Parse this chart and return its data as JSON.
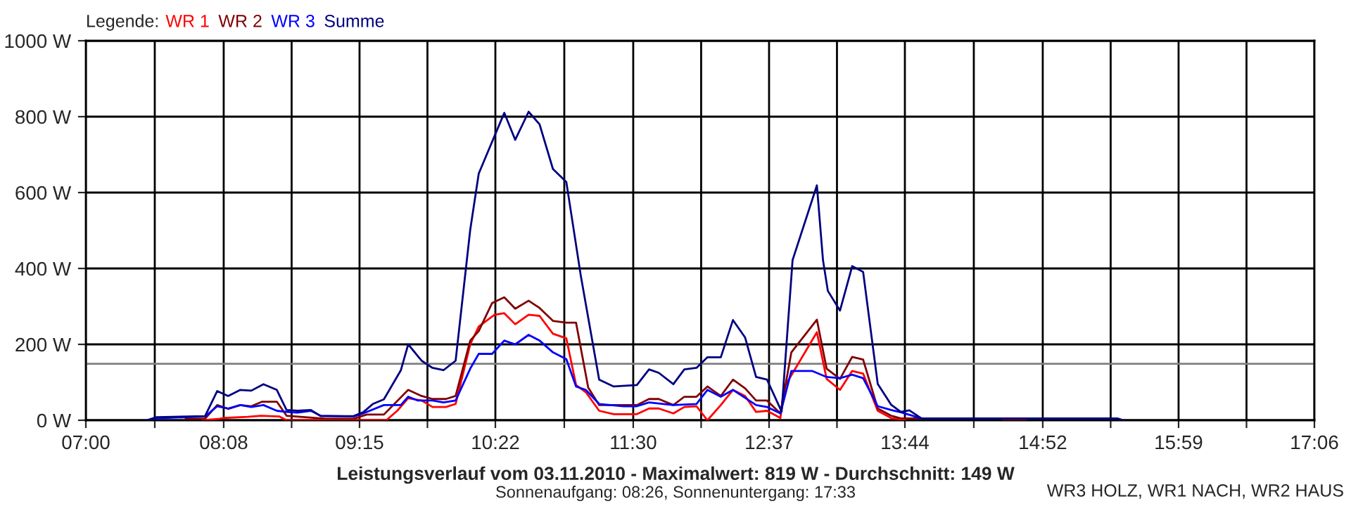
{
  "chart_data": {
    "type": "line",
    "title": "Leistungsverlauf vom 03.11.2010 - Maximalwert: 819 W - Durchschnitt: 149 W",
    "subtitle": "Sonnenaufgang: 08:26, Sonnenuntergang: 17:33",
    "legend_title": "Legende:",
    "annotations": [
      "WR3 HOLZ, WR1 NACH, WR2 HAUS"
    ],
    "series": [
      {
        "name": "WR 1",
        "color": "#ff0000",
        "x": [
          7.96,
          8.1,
          8.13,
          8.33,
          8.44,
          8.59,
          8.65,
          9.47,
          9.56,
          9.65,
          9.76,
          9.85,
          9.96,
          10.04,
          10.16,
          10.23,
          10.36,
          10.44,
          10.53,
          10.64,
          10.73,
          10.84,
          10.95,
          11.03,
          11.11,
          11.22,
          11.34,
          11.53,
          11.63,
          11.71,
          11.83,
          11.92,
          12.02,
          12.11,
          12.22,
          12.32,
          12.42,
          12.51,
          12.6,
          12.71,
          12.74,
          13.01,
          13.09,
          13.2,
          13.3,
          13.39,
          13.51,
          13.62,
          13.7,
          13.74
        ],
        "values": [
          0,
          4,
          6,
          9,
          12,
          10,
          0,
          0,
          25,
          58,
          52,
          35,
          35,
          43,
          200,
          247,
          278,
          282,
          253,
          278,
          275,
          228,
          216,
          93,
          74,
          25,
          16,
          16,
          31,
          31,
          18,
          35,
          37,
          0,
          40,
          80,
          64,
          22,
          25,
          6,
          86,
          232,
          109,
          80,
          130,
          123,
          25,
          6,
          2,
          0
        ]
      },
      {
        "name": "WR 2",
        "color": "#800000",
        "x": [
          7.82,
          7.98,
          8.08,
          8.17,
          8.27,
          8.36,
          8.45,
          8.57,
          8.65,
          8.9,
          8.97,
          9.2,
          9.31,
          9.45,
          9.65,
          9.76,
          9.85,
          9.96,
          10.04,
          10.16,
          10.23,
          10.34,
          10.44,
          10.53,
          10.64,
          10.73,
          10.84,
          10.95,
          11.03,
          11.13,
          11.22,
          11.53,
          11.63,
          11.71,
          11.83,
          11.92,
          12.02,
          12.11,
          12.22,
          12.32,
          12.42,
          12.51,
          12.6,
          12.71,
          12.8,
          13.01,
          13.09,
          13.2,
          13.3,
          13.39,
          13.51,
          13.62,
          13.7,
          13.85,
          14.2,
          14.54,
          14.73
        ],
        "values": [
          4,
          4,
          40,
          30,
          40,
          37,
          49,
          49,
          12,
          6,
          4,
          4,
          15,
          15,
          80,
          64,
          56,
          56,
          64,
          210,
          235,
          309,
          324,
          294,
          315,
          296,
          262,
          257,
          257,
          86,
          40,
          40,
          56,
          56,
          40,
          62,
          62,
          89,
          64,
          107,
          84,
          52,
          52,
          18,
          179,
          265,
          136,
          109,
          167,
          160,
          31,
          12,
          5,
          5,
          null,
          2,
          2
        ]
      },
      {
        "name": "WR 3",
        "color": "#0000ff",
        "x": [
          7.56,
          7.98,
          8.08,
          8.17,
          8.27,
          8.36,
          8.46,
          8.57,
          8.65,
          8.74,
          8.85,
          8.93,
          9.2,
          9.28,
          9.45,
          9.59,
          9.65,
          9.73,
          9.85,
          9.94,
          10.04,
          10.16,
          10.23,
          10.34,
          10.44,
          10.53,
          10.64,
          10.73,
          10.84,
          10.95,
          11.03,
          11.11,
          11.22,
          11.42,
          11.53,
          11.63,
          11.83,
          12.02,
          12.11,
          12.22,
          12.32,
          12.42,
          12.51,
          12.6,
          12.71,
          12.8,
          12.97,
          13.09,
          13.2,
          13.3,
          13.39,
          13.51,
          13.62,
          13.7,
          13.87
        ],
        "values": [
          5,
          10,
          37,
          31,
          40,
          35,
          40,
          25,
          22,
          20,
          25,
          12,
          10,
          18,
          40,
          40,
          62,
          52,
          52,
          47,
          52,
          136,
          175,
          175,
          210,
          200,
          225,
          210,
          179,
          161,
          89,
          80,
          43,
          37,
          37,
          47,
          40,
          43,
          80,
          62,
          80,
          59,
          40,
          35,
          18,
          130,
          130,
          114,
          111,
          120,
          111,
          37,
          27,
          21,
          5
        ]
      },
      {
        "name": "Summe",
        "color": "#000080",
        "x": [
          7.5,
          7.58,
          7.98,
          8.08,
          8.17,
          8.27,
          8.36,
          8.46,
          8.57,
          8.65,
          8.74,
          8.85,
          8.93,
          9.2,
          9.28,
          9.36,
          9.45,
          9.59,
          9.65,
          9.76,
          9.85,
          9.94,
          10.04,
          10.16,
          10.23,
          10.31,
          10.44,
          10.53,
          10.64,
          10.73,
          10.84,
          10.95,
          11.07,
          11.22,
          11.34,
          11.53,
          11.63,
          11.71,
          11.83,
          11.92,
          12.02,
          12.11,
          12.22,
          12.32,
          12.42,
          12.51,
          12.6,
          12.72,
          12.81,
          13.01,
          13.06,
          13.1,
          13.2,
          13.3,
          13.39,
          13.51,
          13.62,
          13.7,
          13.77,
          13.87,
          15.48,
          15.53
        ],
        "values": [
          0,
          8,
          11,
          77,
          64,
          80,
          78,
          95,
          80,
          27,
          25,
          27,
          11,
          11,
          21,
          43,
          55,
          132,
          200,
          157,
          138,
          132,
          157,
          502,
          650,
          711,
          810,
          739,
          813,
          780,
          662,
          628,
          379,
          107,
          89,
          93,
          134,
          125,
          95,
          134,
          138,
          166,
          166,
          264,
          218,
          114,
          107,
          23,
          422,
          619,
          422,
          341,
          289,
          406,
          391,
          96,
          41,
          22,
          26,
          5,
          5,
          0
        ]
      }
    ],
    "xlim": [
      7,
      17.1
    ],
    "xticks": [
      {
        "value": 7,
        "label": "07:00"
      },
      {
        "value": 7.5667,
        "label": null
      },
      {
        "value": 8.1333,
        "label": "08:08"
      },
      {
        "value": 8.6917,
        "label": null
      },
      {
        "value": 9.25,
        "label": "09:15"
      },
      {
        "value": 9.8083,
        "label": null
      },
      {
        "value": 10.3667,
        "label": "10:22"
      },
      {
        "value": 10.9333,
        "label": null
      },
      {
        "value": 11.5,
        "label": "11:30"
      },
      {
        "value": 12.0583,
        "label": null
      },
      {
        "value": 12.6167,
        "label": "12:37"
      },
      {
        "value": 13.175,
        "label": null
      },
      {
        "value": 13.7333,
        "label": "13:44"
      },
      {
        "value": 14.3,
        "label": null
      },
      {
        "value": 14.8667,
        "label": "14:52"
      },
      {
        "value": 15.425,
        "label": null
      },
      {
        "value": 15.9833,
        "label": "15:59"
      },
      {
        "value": 16.5417,
        "label": null
      },
      {
        "value": 17.1,
        "label": "17:06"
      }
    ],
    "ylim": [
      0,
      1000
    ],
    "yticks": [
      {
        "value": 0,
        "label": "0 W"
      },
      {
        "value": 200,
        "label": "200 W"
      },
      {
        "value": 400,
        "label": "400 W"
      },
      {
        "value": 600,
        "label": "600 W"
      },
      {
        "value": 800,
        "label": "800 W"
      },
      {
        "value": 1000,
        "label": "1000 W"
      }
    ],
    "ref_lines": [
      {
        "axis": "y",
        "value": 149,
        "color": "#808080"
      }
    ],
    "grid": true,
    "legend": "top left",
    "marker": "none",
    "line_style": "solid"
  }
}
